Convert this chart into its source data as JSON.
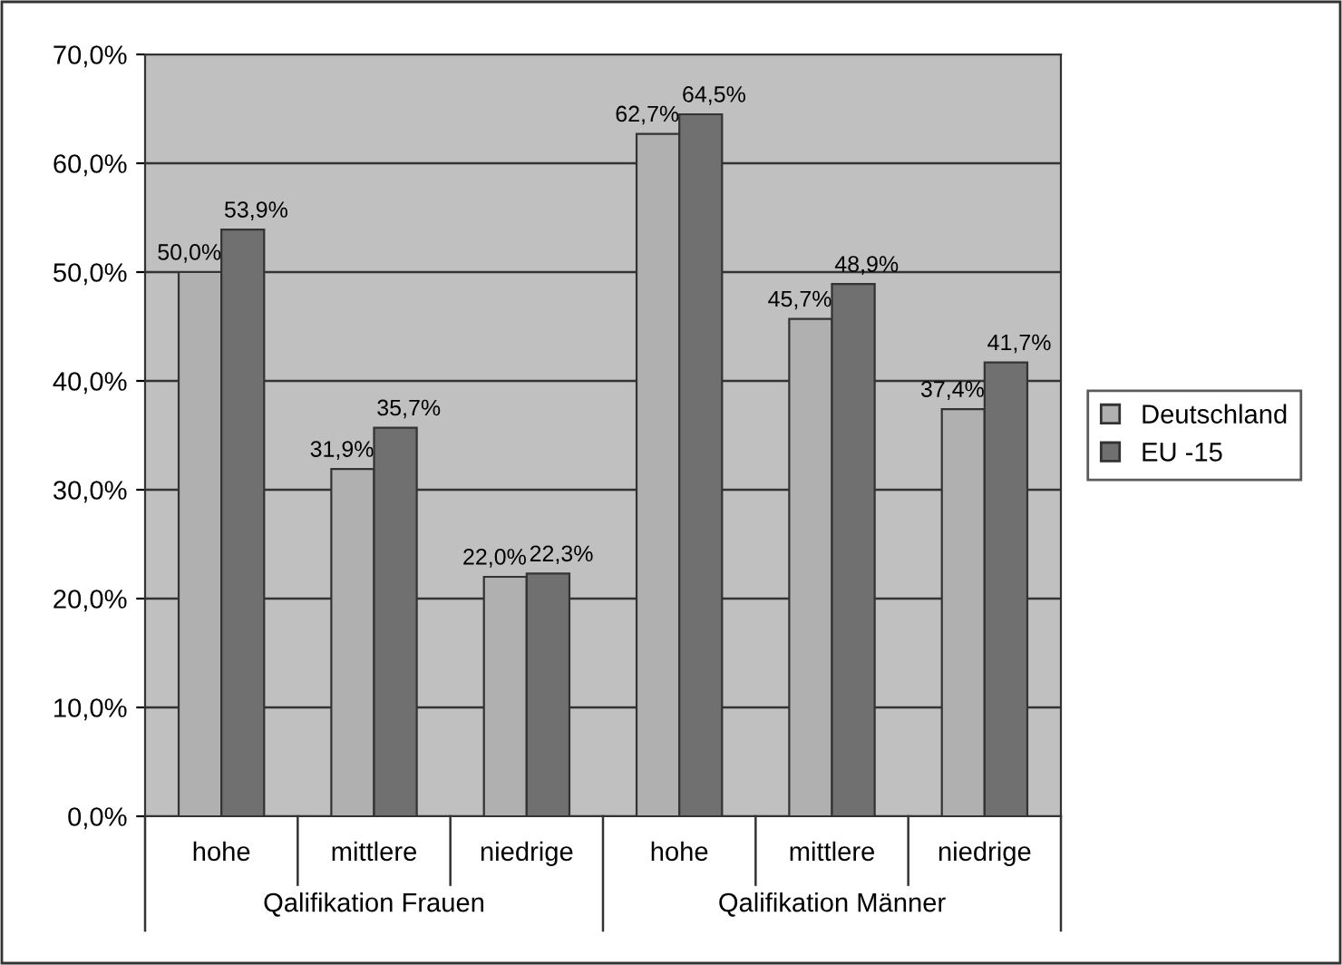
{
  "chart_data": {
    "type": "bar",
    "categories": [
      "hohe",
      "mittlere",
      "niedrige",
      "hohe",
      "mittlere",
      "niedrige"
    ],
    "series": [
      {
        "name": "Deutschland",
        "color": "#b0b0b0",
        "values": [
          50.0,
          31.9,
          22.0,
          62.7,
          45.7,
          37.4
        ],
        "value_labels": [
          "50,0%",
          "31,9%",
          "22,0%",
          "62,7%",
          "45,7%",
          "37,4%"
        ]
      },
      {
        "name": "EU -15",
        "color": "#707070",
        "values": [
          53.9,
          35.7,
          22.3,
          64.5,
          48.9,
          41.7
        ],
        "value_labels": [
          "53,9%",
          "35,7%",
          "22,3%",
          "64,5%",
          "48,9%",
          "41,7%"
        ]
      }
    ],
    "ylim": [
      0,
      70
    ],
    "yticks": [
      {
        "value": 0,
        "label": "0,0%"
      },
      {
        "value": 10,
        "label": "10,0%"
      },
      {
        "value": 20,
        "label": "20,0%"
      },
      {
        "value": 30,
        "label": "30,0%"
      },
      {
        "value": 40,
        "label": "40,0%"
      },
      {
        "value": 50,
        "label": "50,0%"
      },
      {
        "value": 60,
        "label": "60,0%"
      },
      {
        "value": 70,
        "label": "70,0%"
      }
    ],
    "grid": "y",
    "legend": "right",
    "annotations": [
      "Qalifikation Frauen",
      "Qalifikation Männer"
    ]
  }
}
